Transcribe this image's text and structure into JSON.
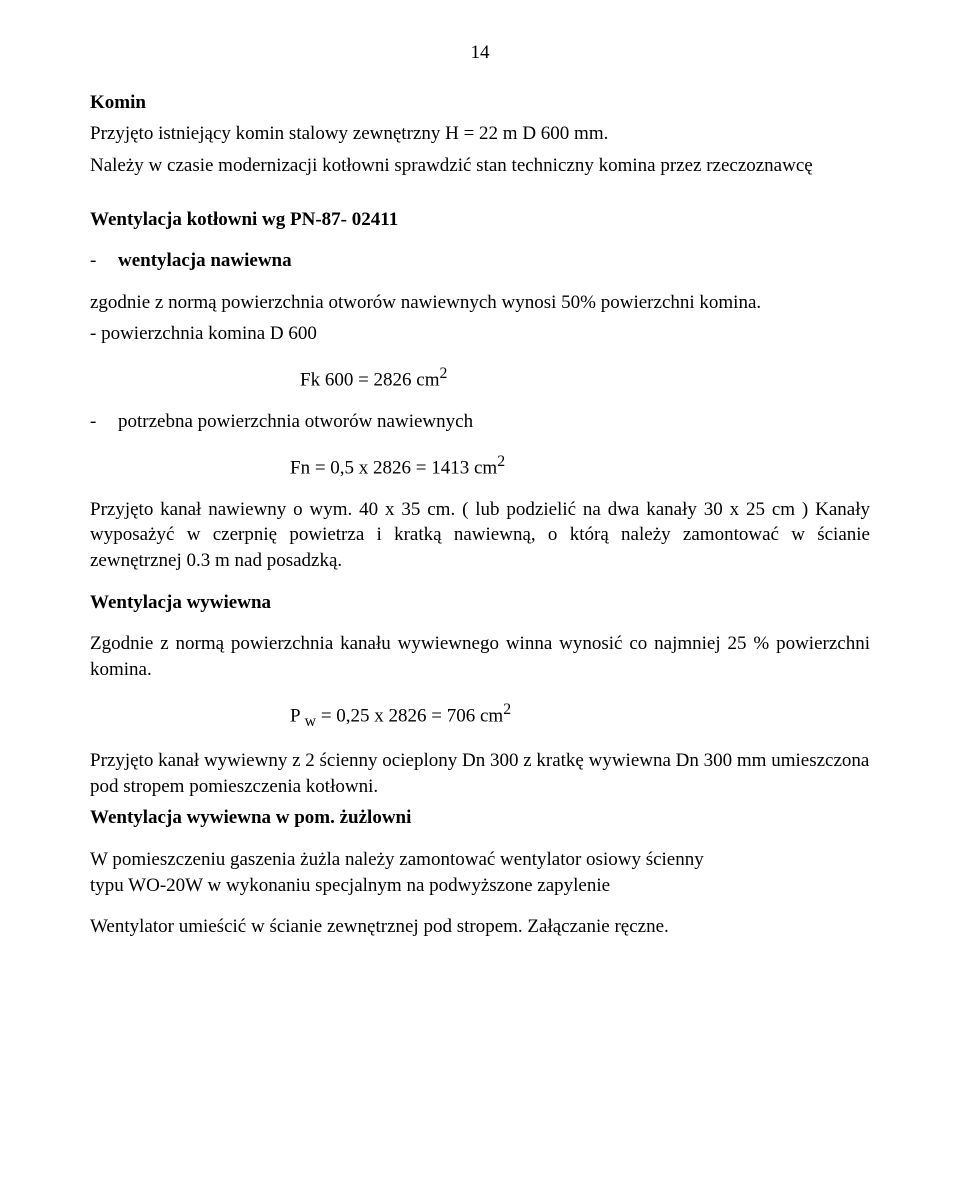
{
  "page_number": "14",
  "komin": {
    "heading": "Komin",
    "line1": "Przyjęto istniejący komin stalowy zewnętrzny H = 22 m D 600 mm.",
    "line2": "Należy w czasie modernizacji kotłowni sprawdzić stan techniczny komina przez rzeczoznawcę"
  },
  "wentylacja_kotlowni": {
    "heading": "Wentylacja kotłowni  wg PN-87- 02411",
    "nawiewna_label": "wentylacja nawiewna",
    "nawiewna_desc1": "zgodnie z normą powierzchnia otworów nawiewnych wynosi 50% powierzchni komina.",
    "nawiewna_desc2": "- powierzchnia komina D 600",
    "fk_formula": "Fk 600 = 2826 cm",
    "fk_exp": "2",
    "potrzebna_label": "potrzebna powierzchnia otworów nawiewnych",
    "fn_formula": "Fn = 0,5 x 2826 = 1413 cm",
    "fn_exp": "2",
    "kanal_line": "Przyjęto  kanał nawiewny o wym. 40 x 35 cm. ( lub podzielić na dwa kanały 30 x 25 cm ) Kanały wyposażyć w czerpnię powietrza i  kratką nawiewną, o którą należy zamontować w ścianie zewnętrznej 0.3 m nad posadzką."
  },
  "wywiewna": {
    "heading": "Wentylacja wywiewna",
    "desc": "Zgodnie z normą powierzchnia kanału wywiewnego winna wynosić co najmniej 25 % powierzchni komina.",
    "pw_prefix": "P ",
    "pw_sub": "w",
    "pw_rest": " = 0,25 x 2826 = 706 cm",
    "pw_exp": "2",
    "kanal1": "Przyjęto kanał wywiewny z 2 ścienny ocieplony Dn 300 z kratkę wywiewna Dn 300 mm umieszczona pod stropem pomieszczenia kotłowni.",
    "heading_pom": "Wentylacja wywiewna w pom. żużlowni",
    "pom_line1": "W pomieszczeniu gaszenia żużla należy zamontować wentylator osiowy ścienny",
    "pom_line2": " typu WO-20W w wykonaniu specjalnym na podwyższone zapylenie",
    "pom_line3": "Wentylator umieścić w ścianie zewnętrznej pod stropem. Załączanie ręczne."
  }
}
